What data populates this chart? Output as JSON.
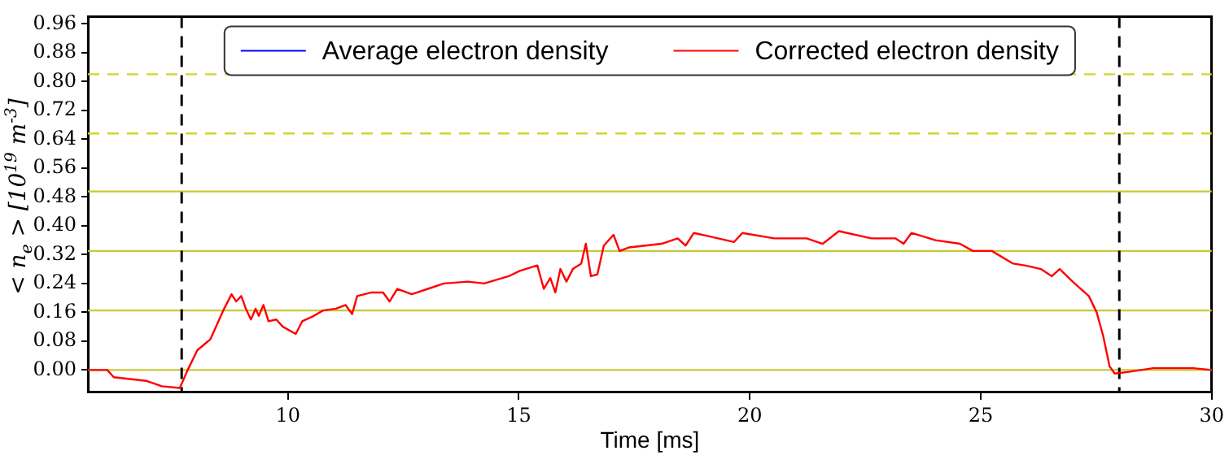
{
  "chart_data": {
    "type": "line",
    "xlabel": "Time [ms]",
    "ylabel": "< n$_{e}$ > [10$^{19}$ m$^{-3}$]",
    "xlim": [
      5.67,
      30
    ],
    "xticks": [
      10,
      15,
      20,
      25,
      30
    ],
    "ylim": [
      -0.06,
      0.98
    ],
    "yticks": [
      {
        "value": 0,
        "label": "0.00"
      },
      {
        "value": 0.08,
        "label": "0.08"
      },
      {
        "value": 0.16,
        "label": "0.16"
      },
      {
        "value": 0.24,
        "label": "0.24"
      },
      {
        "value": 0.32,
        "label": "0.32"
      },
      {
        "value": 0.4,
        "label": "0.40"
      },
      {
        "value": 0.48,
        "label": "0.48"
      },
      {
        "value": 0.56,
        "label": "0.56"
      },
      {
        "value": 0.64,
        "label": "0.64"
      },
      {
        "value": 0.72,
        "label": "0.72"
      },
      {
        "value": 0.8,
        "label": "0.80"
      },
      {
        "value": 0.88,
        "label": "0.88"
      },
      {
        "value": 0.96,
        "label": "0.96"
      }
    ],
    "x": [
      5.67,
      6.09,
      6.23,
      6.93,
      7.27,
      7.66,
      7.83,
      8.04,
      8.32,
      8.46,
      8.6,
      8.78,
      8.88,
      8.99,
      9.09,
      9.2,
      9.3,
      9.37,
      9.47,
      9.58,
      9.75,
      9.89,
      10.17,
      10.31,
      10.56,
      10.76,
      11.04,
      11.25,
      11.39,
      11.5,
      11.81,
      12.06,
      12.2,
      12.37,
      12.68,
      13.03,
      13.38,
      13.9,
      14.25,
      14.78,
      15.02,
      15.4,
      15.54,
      15.68,
      15.79,
      15.9,
      16.03,
      16.17,
      16.35,
      16.45,
      16.56,
      16.7,
      16.84,
      17.05,
      17.18,
      17.39,
      17.74,
      18.09,
      18.44,
      18.61,
      18.79,
      19.14,
      19.66,
      19.84,
      20.53,
      21.23,
      21.58,
      21.93,
      22.63,
      23.15,
      23.33,
      23.5,
      24.02,
      24.55,
      24.83,
      25.24,
      25.7,
      25.95,
      26.3,
      26.54,
      26.71,
      26.99,
      27.34,
      27.51,
      27.65,
      27.79,
      27.9,
      28.21,
      28.73,
      29.6,
      30
    ],
    "series": [
      {
        "name": "Average electron density",
        "color": "#0000ff",
        "values": [
          null,
          null,
          null,
          null,
          null,
          null,
          null,
          null,
          null,
          null,
          null,
          null,
          null,
          null,
          null,
          null,
          null,
          null,
          null,
          null,
          null,
          null,
          null,
          null,
          null,
          null,
          null,
          null,
          null,
          null,
          null,
          null,
          null,
          null,
          null,
          null,
          null,
          null,
          null,
          null,
          null,
          null,
          null,
          null,
          null,
          null,
          null,
          null,
          null,
          null,
          null,
          null,
          null,
          null,
          null,
          null,
          null,
          null,
          null,
          null,
          null,
          null,
          null,
          null,
          null,
          null,
          null,
          null,
          null,
          null,
          null,
          null,
          null,
          null,
          null,
          null,
          null,
          null,
          null,
          null,
          null,
          null,
          null,
          null,
          null,
          null,
          null,
          null,
          null,
          null,
          null
        ]
      },
      {
        "name": "Corrected electron density",
        "color": "#ff0000",
        "values": [
          0,
          0,
          -0.02,
          -0.03,
          -0.045,
          -0.05,
          0,
          0.055,
          0.085,
          0.125,
          0.165,
          0.21,
          0.19,
          0.205,
          0.17,
          0.14,
          0.17,
          0.15,
          0.18,
          0.135,
          0.14,
          0.12,
          0.1,
          0.135,
          0.15,
          0.165,
          0.17,
          0.18,
          0.155,
          0.205,
          0.215,
          0.215,
          0.19,
          0.225,
          0.21,
          0.225,
          0.24,
          0.245,
          0.24,
          0.26,
          0.275,
          0.29,
          0.225,
          0.255,
          0.215,
          0.28,
          0.245,
          0.28,
          0.295,
          0.35,
          0.26,
          0.265,
          0.345,
          0.375,
          0.33,
          0.34,
          0.345,
          0.35,
          0.365,
          0.345,
          0.38,
          0.37,
          0.355,
          0.38,
          0.365,
          0.365,
          0.35,
          0.385,
          0.365,
          0.365,
          0.35,
          0.38,
          0.36,
          0.35,
          0.33,
          0.33,
          0.295,
          0.29,
          0.28,
          0.26,
          0.28,
          0.245,
          0.205,
          0.16,
          0.095,
          0.01,
          -0.01,
          -0.005,
          0.005,
          0.005,
          0
        ]
      }
    ],
    "ref_lines": [
      {
        "axis": "y",
        "value": 0,
        "color": "#c8c83c",
        "line_style": "solid"
      },
      {
        "axis": "y",
        "value": 0.165,
        "color": "#c8c83c",
        "line_style": "solid"
      },
      {
        "axis": "y",
        "value": 0.33,
        "color": "#c8c83c",
        "line_style": "solid"
      },
      {
        "axis": "y",
        "value": 0.495,
        "color": "#c8c83c",
        "line_style": "solid"
      },
      {
        "axis": "y",
        "value": 0.656,
        "color": "#d4d42a",
        "line_style": "dashed"
      },
      {
        "axis": "y",
        "value": 0.82,
        "color": "#d4d42a",
        "line_style": "dashed"
      },
      {
        "axis": "x",
        "value": 7.7,
        "color": "#000000",
        "line_style": "dashed"
      },
      {
        "axis": "x",
        "value": 28.0,
        "color": "#000000",
        "line_style": "dashed"
      }
    ],
    "legend": "top",
    "grid": false,
    "marker": "none",
    "line_style": "solid"
  }
}
